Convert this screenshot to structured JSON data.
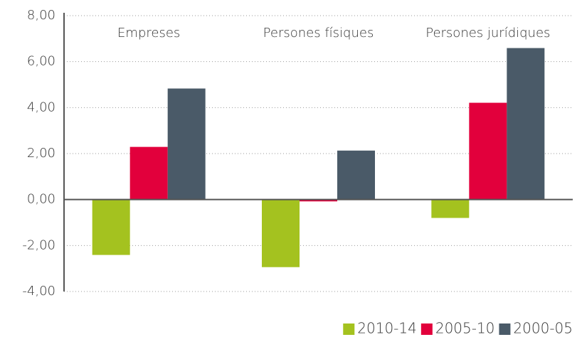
{
  "chart_data": {
    "type": "bar",
    "categories": [
      "Empreses",
      "Persones físiques",
      "Persones jurídiques"
    ],
    "series": [
      {
        "name": "2010-14",
        "color": "#a4c21f",
        "values": [
          -2.41,
          -2.94,
          -0.8
        ]
      },
      {
        "name": "2005-10",
        "color": "#e2003c",
        "values": [
          2.29,
          -0.08,
          4.21
        ]
      },
      {
        "name": "2000-05",
        "color": "#4a5a68",
        "values": [
          4.83,
          2.13,
          6.59
        ]
      }
    ],
    "ylim": [
      -4,
      8
    ],
    "yticks": [
      {
        "value": -4,
        "label": "-4,00"
      },
      {
        "value": -2,
        "label": "-2,00"
      },
      {
        "value": 0,
        "label": "0,00"
      },
      {
        "value": 2,
        "label": "2,00"
      },
      {
        "value": 4,
        "label": "4,00"
      },
      {
        "value": 6,
        "label": "6,00"
      },
      {
        "value": 8,
        "label": "8,00"
      }
    ],
    "grid": true,
    "legend": "bottom-right"
  }
}
